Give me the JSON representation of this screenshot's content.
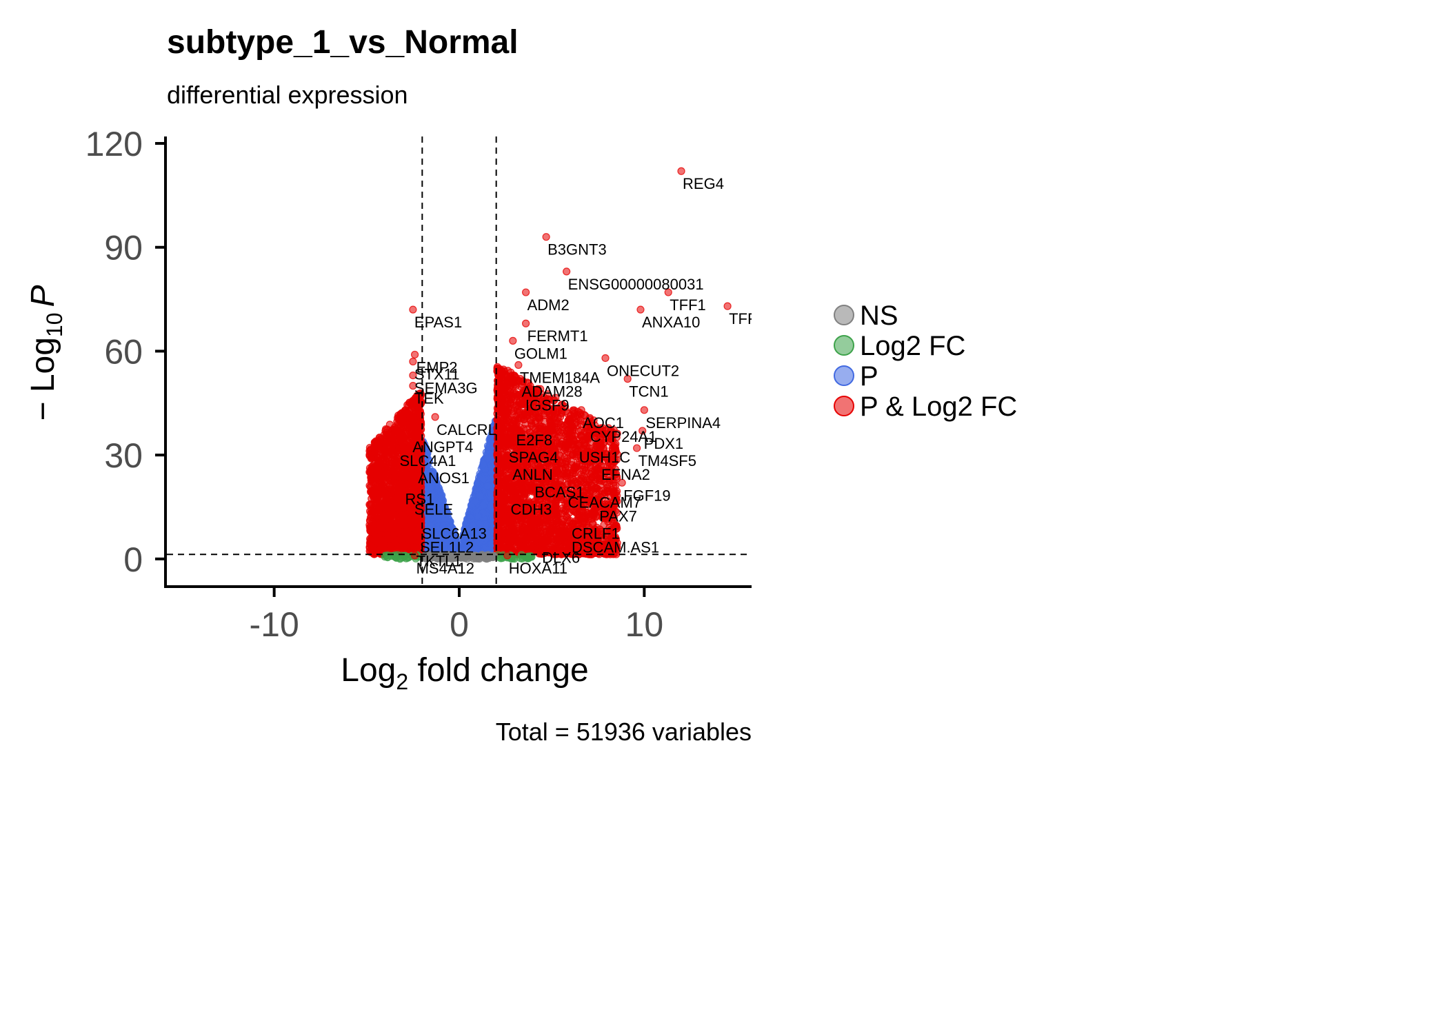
{
  "chart_data": {
    "type": "scatter",
    "title": "subtype_1_vs_Normal",
    "subtitle": "differential expression",
    "xlabel_main": "Log",
    "xlabel_sub": "2",
    "xlabel_tail": " fold change",
    "ylabel_prefix": "− Log",
    "ylabel_sub": "10",
    "ylabel_tail": "P",
    "caption": "Total = 51936 variables",
    "xlim": [
      -15.8,
      15.8
    ],
    "ylim": [
      -8,
      122
    ],
    "x_ticks": [
      -10,
      0,
      10
    ],
    "x_tick_labels": [
      "-10",
      "0",
      "10"
    ],
    "y_ticks": [
      0,
      30,
      60,
      90,
      120
    ],
    "y_tick_labels": [
      "0",
      "30",
      "60",
      "90",
      "120"
    ],
    "fc_cutoff": 2,
    "p_cutoff_neglog10": 1.3,
    "legend": {
      "placement": "right",
      "items": [
        {
          "key": "NS",
          "label": "NS",
          "color": "#808080"
        },
        {
          "key": "FC",
          "label": "Log2 FC",
          "color": "#3da24a"
        },
        {
          "key": "P",
          "label": "P",
          "color": "#4169e1"
        },
        {
          "key": "PFC",
          "label": "P & Log2 FC",
          "color": "#e60000"
        }
      ]
    },
    "labeled_points": [
      {
        "label": "REG4",
        "x": 12.0,
        "y": 112
      },
      {
        "label": "B3GNT3",
        "x": 4.7,
        "y": 93
      },
      {
        "label": "ENSG00000080031",
        "x": 5.8,
        "y": 83
      },
      {
        "label": "TFF1",
        "x": 11.3,
        "y": 77
      },
      {
        "label": "TFF",
        "x": 14.5,
        "y": 73
      },
      {
        "label": "ANXA10",
        "x": 9.8,
        "y": 72
      },
      {
        "label": "ADM2",
        "x": 3.6,
        "y": 77
      },
      {
        "label": "EPAS1",
        "x": -2.5,
        "y": 72
      },
      {
        "label": "FERMT1",
        "x": 3.6,
        "y": 68
      },
      {
        "label": "GOLM1",
        "x": 2.9,
        "y": 63
      },
      {
        "label": "ONECUT2",
        "x": 7.9,
        "y": 58
      },
      {
        "label": "EMP2",
        "x": -2.4,
        "y": 59
      },
      {
        "label": "TMEM184A",
        "x": 3.2,
        "y": 56
      },
      {
        "label": "STX11",
        "x": -2.5,
        "y": 57
      },
      {
        "label": "ADAM28",
        "x": 3.3,
        "y": 52
      },
      {
        "label": "TCN1",
        "x": 9.1,
        "y": 52
      },
      {
        "label": "SEMA3G",
        "x": -2.5,
        "y": 53
      },
      {
        "label": "TEK",
        "x": -2.5,
        "y": 50
      },
      {
        "label": "IGSF9",
        "x": 3.5,
        "y": 48
      },
      {
        "label": "SERPINA4",
        "x": 10.0,
        "y": 43
      },
      {
        "label": "AOC1",
        "x": 6.6,
        "y": 43
      },
      {
        "label": "PDX1",
        "x": 9.9,
        "y": 37
      },
      {
        "label": "CALCRL",
        "x": -1.3,
        "y": 41
      },
      {
        "label": "E2F8",
        "x": 3.0,
        "y": 38
      },
      {
        "label": "CYP24A1",
        "x": 7.0,
        "y": 39
      },
      {
        "label": "ANGPT4",
        "x": -2.6,
        "y": 36
      },
      {
        "label": "TM4SF5",
        "x": 9.6,
        "y": 32
      },
      {
        "label": "USH1C",
        "x": 6.4,
        "y": 33
      },
      {
        "label": "SPAG4",
        "x": 2.6,
        "y": 33
      },
      {
        "label": "SLC4A1",
        "x": -3.3,
        "y": 32
      },
      {
        "label": "EFNA2",
        "x": 7.6,
        "y": 28
      },
      {
        "label": "ANLN",
        "x": 2.8,
        "y": 28
      },
      {
        "label": "ANOS1",
        "x": -2.3,
        "y": 27
      },
      {
        "label": "FGF19",
        "x": 8.8,
        "y": 22
      },
      {
        "label": "BCAS1",
        "x": 4.0,
        "y": 23
      },
      {
        "label": "RS1",
        "x": -3.0,
        "y": 21
      },
      {
        "label": "CEACAM7",
        "x": 5.8,
        "y": 20
      },
      {
        "label": "SELE",
        "x": -2.5,
        "y": 18
      },
      {
        "label": "CDH3",
        "x": 2.7,
        "y": 18
      },
      {
        "label": "PAX7",
        "x": 7.5,
        "y": 16
      },
      {
        "label": "CRLF1",
        "x": 6.0,
        "y": 11
      },
      {
        "label": "SLC6A13",
        "x": -2.1,
        "y": 11
      },
      {
        "label": "DSCAM.AS1",
        "x": 6.0,
        "y": 7
      },
      {
        "label": "SEL1L2",
        "x": -2.2,
        "y": 7
      },
      {
        "label": "DLX6",
        "x": 4.4,
        "y": 4
      },
      {
        "label": "TKTL1",
        "x": -2.4,
        "y": 3
      },
      {
        "label": "HOXA11",
        "x": 2.6,
        "y": 1
      },
      {
        "label": "MS4A12",
        "x": -2.4,
        "y": 1
      }
    ]
  }
}
